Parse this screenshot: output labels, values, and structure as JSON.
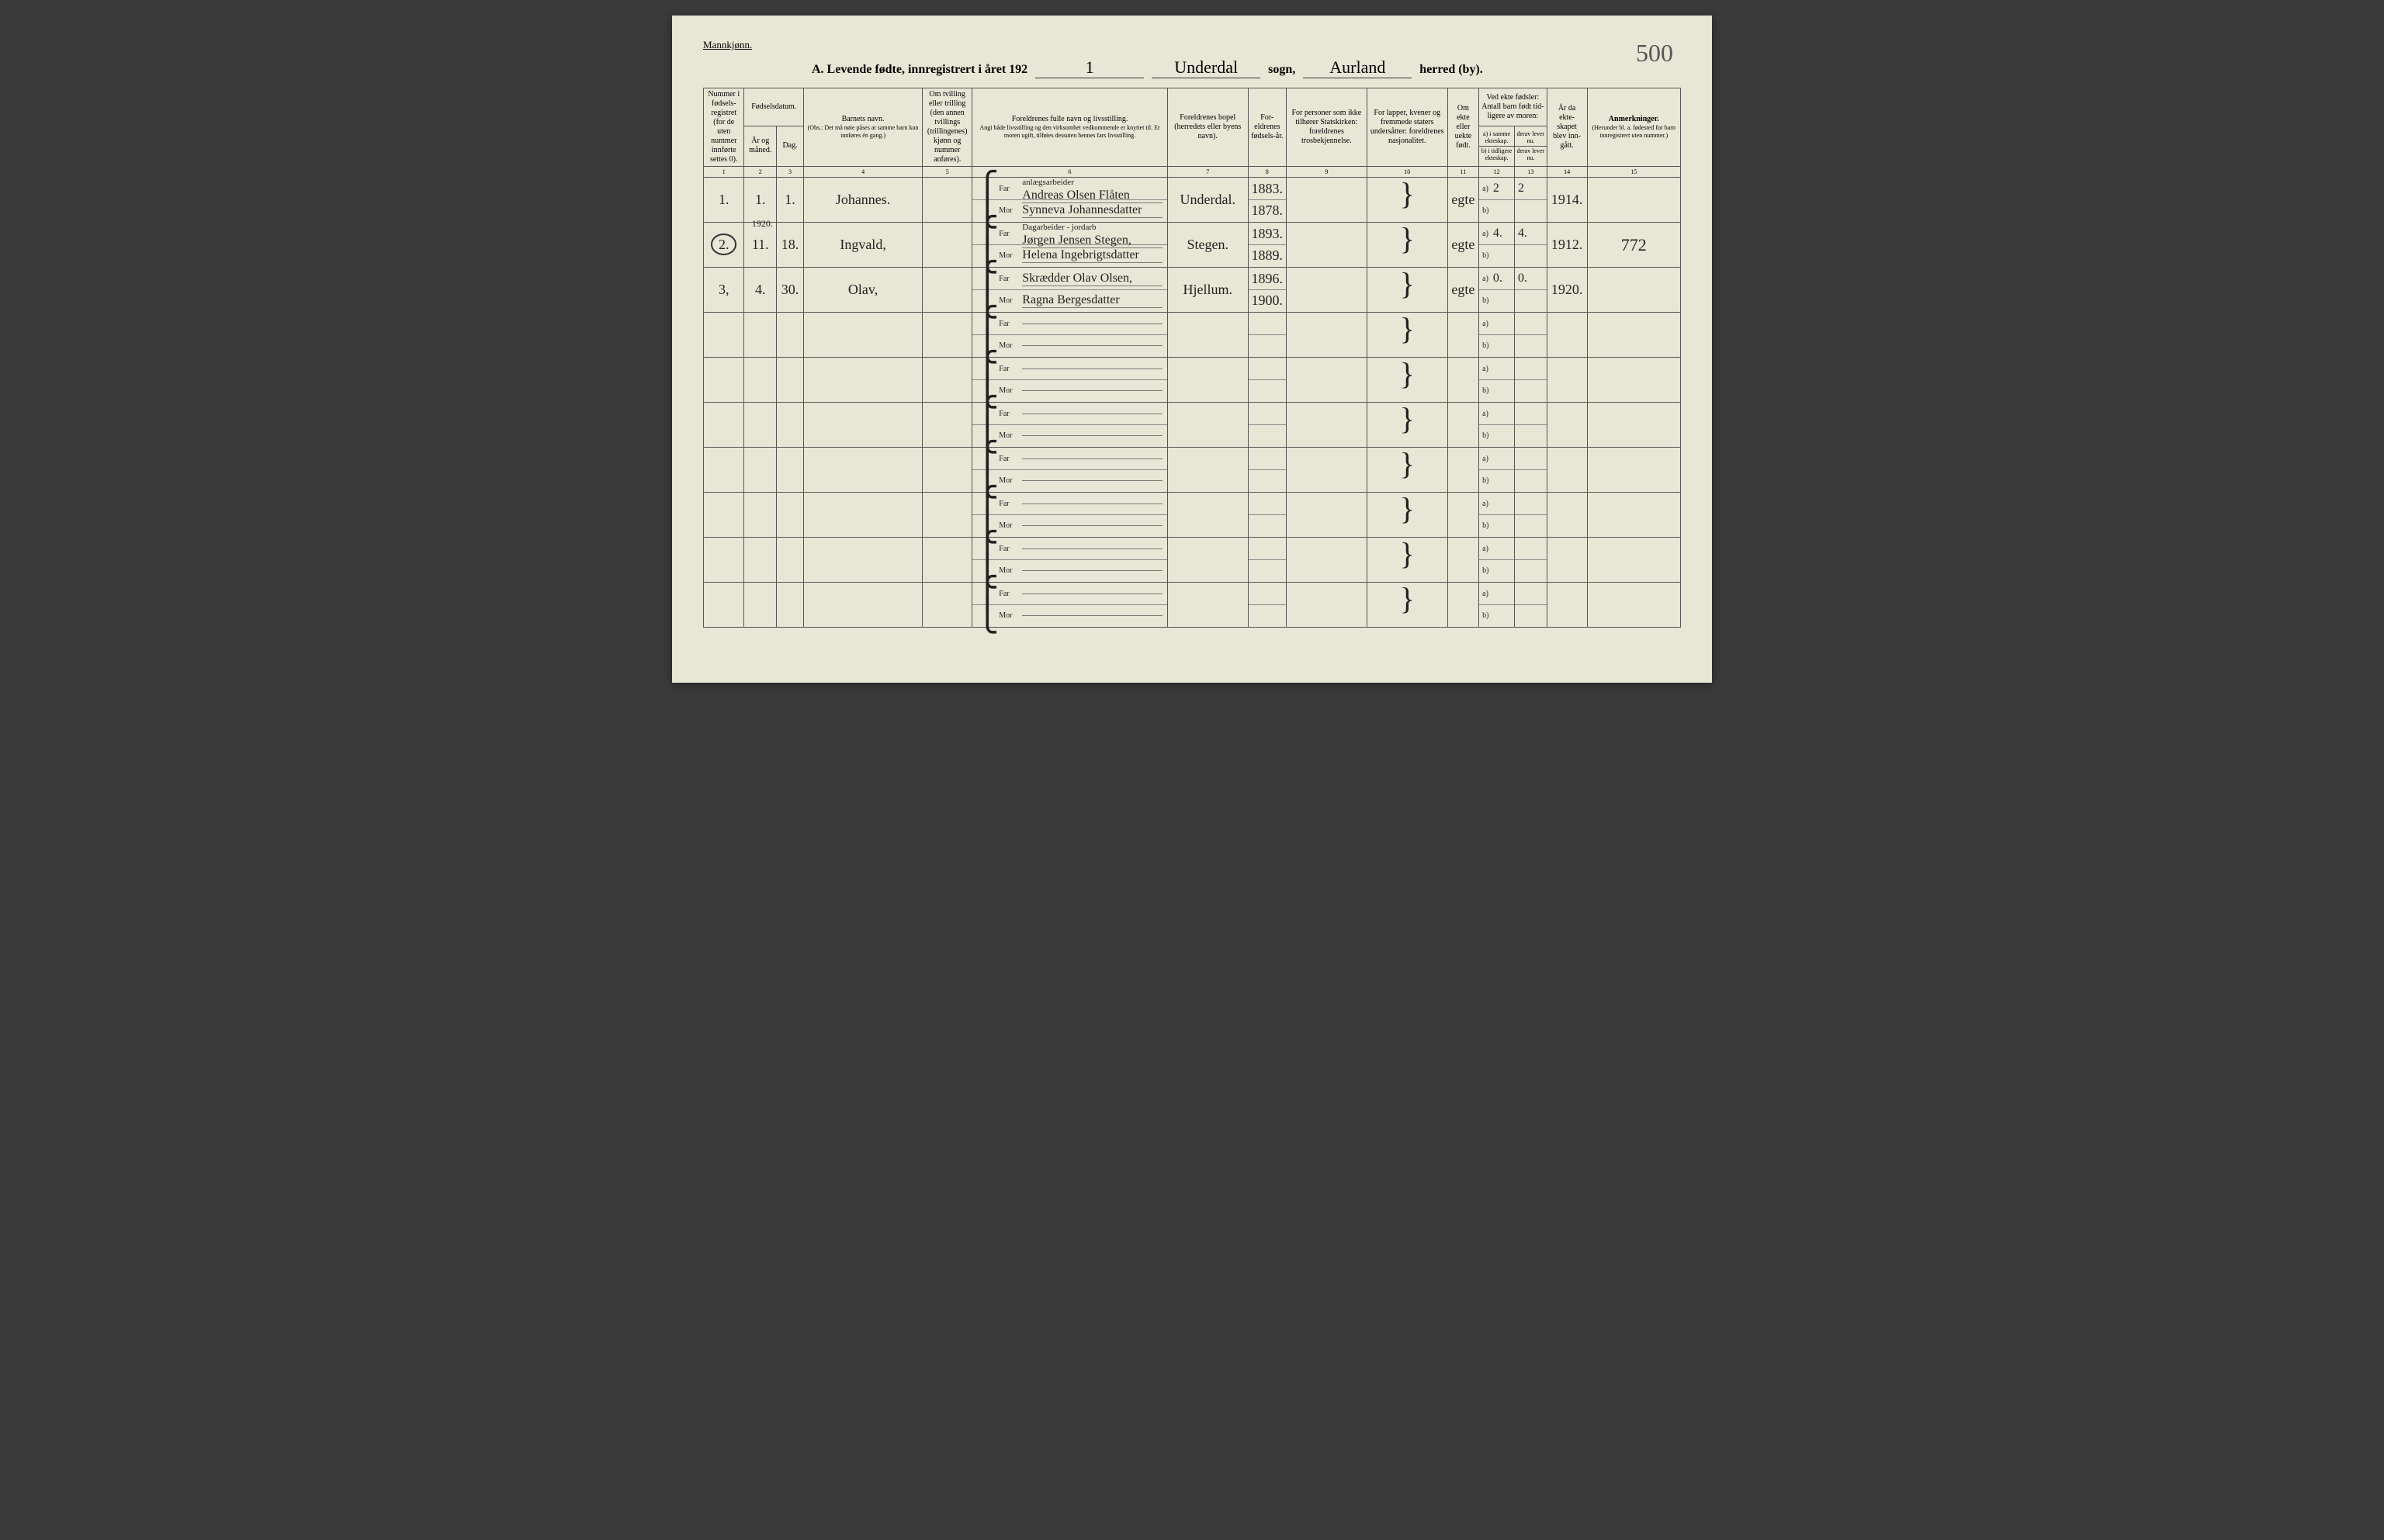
{
  "labels": {
    "gender": "Mannkjønn.",
    "title_prefix": "A.  Levende fødte, innregistrert i året 192",
    "year_suffix": "1",
    "sogn_hand": "Underdal",
    "sogn_label": "sogn,",
    "herred_hand": "Aurland",
    "herred_label": "herred (by).",
    "page_number": "500"
  },
  "headers": {
    "c1": "Nummer i fødsels-registret (for de uten nummer innførte settes 0).",
    "c2_group": "Fødselsdatum.",
    "c2": "År og måned.",
    "c3": "Dag.",
    "c4": "Barnets navn.",
    "c4_note": "(Obs.: Det må nøie påses at samme barn kun innføres én gang.)",
    "c5": "Om tvilling eller trilling (den annen tvillings (trillingenes) kjønn og nummer anføres).",
    "c6": "Foreldrenes fulle navn og livsstilling.",
    "c6_note": "Angi både livsstilling og den virksomhet vedkommende er knyttet til. Er moren ugift, tilføies dessuten hennes fars livsstilling.",
    "c7": "Foreldrenes bopel (herredets eller byens navn).",
    "c8": "For-eldrenes fødsels-år.",
    "c9": "For personer som ikke tilhører Statskirken: foreldrenes trosbekjennelse.",
    "c10": "For lapper, kvener og fremmede staters undersåtter: foreldrenes nasjonalitet.",
    "c11": "Om ekte eller uekte født.",
    "c12_group": "Ved ekte fødsler: Antall barn født tid-ligere av moren:",
    "c12a": "a) i samme ekteskap.",
    "c12b": "b) i tidligere ekteskap.",
    "c13a": "derav lever nu.",
    "c13b": "derav lever nu.",
    "c14": "År da ekte-skapet blev inn-gått.",
    "c15": "Anmerkninger.",
    "c15_note": "(Herunder bl. a. fødested for barn innregistrert uten nummer.)",
    "far": "Far",
    "mor": "Mor"
  },
  "colnums": [
    "1",
    "2",
    "3",
    "4",
    "5",
    "6",
    "7",
    "8",
    "9",
    "10",
    "11",
    "12",
    "13",
    "14",
    "15"
  ],
  "rows": [
    {
      "num": "1.",
      "month": "1.",
      "day": "1.",
      "name": "Johannes.",
      "far_occ": "anlægsarbeider",
      "far": "Andreas Olsen Flåten",
      "mor": "Synneva Johannesdatter",
      "bopel": "Underdal.",
      "far_year": "1883.",
      "mor_year": "1878.",
      "ekte": "egte",
      "a_same": "2",
      "a_lever": "2",
      "b_tid": "",
      "b_lever": "",
      "marr_year": "1914.",
      "note": ""
    },
    {
      "num": "2.",
      "num_circled": true,
      "year_above": "1920.",
      "month": "11.",
      "day": "18.",
      "name": "Ingvald,",
      "far_occ": "Dagarbeider - jordarb",
      "far": "Jørgen Jensen Stegen,",
      "mor": "Helena Ingebrigtsdatter",
      "bopel": "Stegen.",
      "far_year": "1893.",
      "mor_year": "1889.",
      "ekte": "egte",
      "a_same": "4.",
      "a_lever": "4.",
      "b_tid": "",
      "b_lever": "",
      "marr_year": "1912.",
      "note": "772"
    },
    {
      "num": "3,",
      "month": "4.",
      "day": "30.",
      "name": "Olav,",
      "far_occ": "",
      "far": "Skrædder Olav Olsen,",
      "mor": "Ragna Bergesdatter",
      "bopel": "Hjellum.",
      "far_year": "1896.",
      "mor_year": "1900.",
      "ekte": "egte",
      "a_same": "0.",
      "a_lever": "0.",
      "b_tid": "",
      "b_lever": "",
      "marr_year": "1920.",
      "note": ""
    }
  ],
  "empty_rows": 7,
  "colors": {
    "paper": "#e8e6d4",
    "ink": "#222222",
    "line": "#555555"
  }
}
